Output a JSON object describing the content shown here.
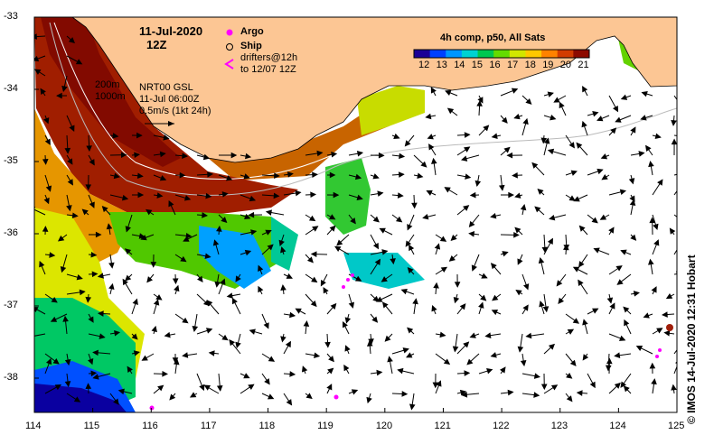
{
  "title": {
    "date": "11-Jul-2020",
    "hour": "12Z"
  },
  "legend": {
    "argo": "Argo",
    "ship": "Ship",
    "drifters_line1": "drifters@12h",
    "drifters_line2": "to 12/07 12Z"
  },
  "contours": {
    "c200": "200m",
    "c1000": "1000m"
  },
  "product": {
    "name": "NRT00 GSL",
    "time": "11-Jul 06:00Z",
    "scale": "0.5m/s (1kt 24h)"
  },
  "colorbar": {
    "title": "4h comp, p50, All Sats",
    "labels": [
      "12",
      "13",
      "14",
      "15",
      "16",
      "17",
      "18",
      "19",
      "20",
      "21"
    ],
    "colors": [
      "#1a0096",
      "#0040ff",
      "#0096ff",
      "#00d2d2",
      "#00c850",
      "#64dc00",
      "#d2e600",
      "#ffc800",
      "#ff8200",
      "#d23c00",
      "#8c0a00"
    ]
  },
  "axes": {
    "x_ticks": [
      "114",
      "115",
      "116",
      "117",
      "118",
      "119",
      "120",
      "121",
      "122",
      "123",
      "124",
      "125"
    ],
    "y_ticks": [
      "-33",
      "-34",
      "-35",
      "-36",
      "-37",
      "-38"
    ]
  },
  "credit": "© IMOS 14-Jul-2020 12:31 Hobart",
  "colors": {
    "land": "#fcc694",
    "arrow": "#000000",
    "argo": "#ff00ff",
    "ship_marker": "#a01e0a"
  }
}
